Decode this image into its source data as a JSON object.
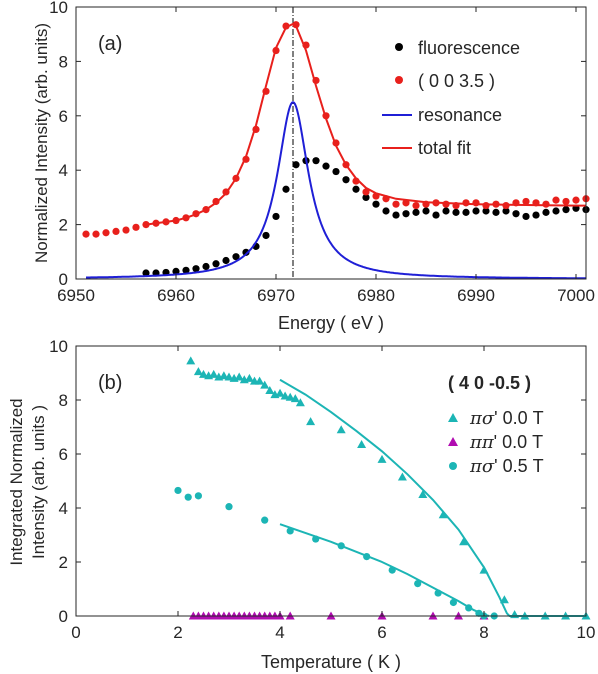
{
  "chart_data": [
    {
      "type": "scatter",
      "panel_label": "(a)",
      "xlabel": "Energy ( eV )",
      "ylabel": "Normalized Intensity (arb. units)",
      "xlim": [
        6950,
        7001
      ],
      "ylim": [
        0,
        10
      ],
      "x_ticks": [
        6950,
        6960,
        6970,
        6980,
        6990,
        7000
      ],
      "y_ticks": [
        0,
        2,
        4,
        6,
        8,
        10
      ],
      "x_tick_labels": [
        "6950",
        "6960",
        "6970",
        "6980",
        "6990",
        "7000"
      ],
      "y_tick_labels": [
        "0",
        "2",
        "4",
        "6",
        "8",
        "10"
      ],
      "vline_x": 6971.7,
      "legend_position": "top-right",
      "series": [
        {
          "name": "fluorescence",
          "kind": "markers",
          "marker": "circle",
          "color": "#000000",
          "x": [
            6957,
            6958,
            6959,
            6960,
            6961,
            6962,
            6963,
            6964,
            6965,
            6966,
            6967,
            6968,
            6969,
            6970,
            6971,
            6972,
            6973,
            6974,
            6975,
            6976,
            6977,
            6978,
            6979,
            6980,
            6981,
            6982,
            6983,
            6984,
            6985,
            6986,
            6987,
            6988,
            6989,
            6990,
            6991,
            6992,
            6993,
            6994,
            6995,
            6996,
            6997,
            6998,
            6999,
            7000,
            7001
          ],
          "y": [
            0.22,
            0.22,
            0.24,
            0.28,
            0.32,
            0.38,
            0.46,
            0.56,
            0.68,
            0.82,
            0.98,
            1.2,
            1.6,
            2.3,
            3.3,
            4.2,
            4.35,
            4.35,
            4.15,
            3.95,
            3.65,
            3.3,
            3.0,
            2.75,
            2.5,
            2.35,
            2.4,
            2.45,
            2.5,
            2.35,
            2.5,
            2.45,
            2.45,
            2.5,
            2.5,
            2.45,
            2.5,
            2.4,
            2.3,
            2.35,
            2.45,
            2.5,
            2.55,
            2.6,
            2.55
          ]
        },
        {
          "name": "( 0 0 3.5 )",
          "kind": "markers",
          "marker": "circle",
          "color": "#e8201c",
          "x": [
            6951,
            6952,
            6953,
            6954,
            6955,
            6956,
            6957,
            6958,
            6959,
            6960,
            6961,
            6962,
            6963,
            6964,
            6965,
            6966,
            6967,
            6968,
            6969,
            6970,
            6971,
            6972,
            6973,
            6974,
            6975,
            6976,
            6977,
            6978,
            6979,
            6980,
            6981,
            6982,
            6983,
            6984,
            6985,
            6986,
            6987,
            6988,
            6989,
            6990,
            6991,
            6992,
            6993,
            6994,
            6995,
            6996,
            6997,
            6998,
            6999,
            7000,
            7001
          ],
          "y": [
            1.65,
            1.65,
            1.7,
            1.75,
            1.8,
            1.9,
            2.0,
            2.05,
            2.1,
            2.15,
            2.25,
            2.4,
            2.55,
            2.85,
            3.2,
            3.7,
            4.4,
            5.5,
            6.9,
            8.4,
            9.3,
            9.35,
            8.6,
            7.3,
            6.0,
            5.0,
            4.2,
            3.6,
            3.2,
            3.05,
            2.95,
            2.75,
            2.8,
            2.7,
            2.75,
            2.8,
            2.75,
            2.7,
            2.8,
            2.8,
            2.7,
            2.75,
            2.7,
            2.8,
            2.85,
            2.8,
            2.75,
            2.9,
            2.85,
            2.9,
            2.95
          ]
        },
        {
          "name": "resonance",
          "kind": "line",
          "color": "#1f1fd6",
          "model": "lorentzian",
          "center": 6971.7,
          "amplitude": 6.5,
          "hwhm": 1.9,
          "x_range": [
            6951,
            7001
          ]
        },
        {
          "name": "total fit",
          "kind": "line",
          "color": "#e8201c",
          "x": [
            6957,
            6958,
            6959,
            6960,
            6961,
            6962,
            6963,
            6964,
            6965,
            6966,
            6967,
            6968,
            6969,
            6970,
            6971,
            6971.7,
            6972,
            6973,
            6974,
            6975,
            6976,
            6977,
            6978,
            6979,
            6980,
            6982,
            6985,
            6990,
            6995,
            7000,
            7001
          ],
          "y": [
            2.0,
            2.05,
            2.1,
            2.15,
            2.25,
            2.38,
            2.55,
            2.8,
            3.15,
            3.7,
            4.5,
            5.65,
            7.1,
            8.5,
            9.25,
            9.38,
            9.3,
            8.4,
            7.1,
            5.9,
            4.9,
            4.2,
            3.7,
            3.35,
            3.15,
            2.95,
            2.82,
            2.75,
            2.72,
            2.7,
            2.7
          ]
        }
      ]
    },
    {
      "type": "scatter",
      "panel_label": "(b)",
      "annotation": "( 4 0 -0.5 )",
      "xlabel": "Temperature ( K )",
      "ylabel_lines": [
        "Integrated Normalized",
        "Intensity (arb. units )"
      ],
      "xlim": [
        0,
        10
      ],
      "ylim": [
        0,
        10
      ],
      "x_ticks": [
        0,
        2,
        4,
        6,
        8,
        10
      ],
      "y_ticks": [
        0,
        2,
        4,
        6,
        8,
        10
      ],
      "x_tick_labels": [
        "0",
        "2",
        "4",
        "6",
        "8",
        "10"
      ],
      "y_tick_labels": [
        "0",
        "2",
        "4",
        "6",
        "8",
        "10"
      ],
      "legend_position": "top-right",
      "series": [
        {
          "name": "πσ' 0.0 T",
          "name_italic": "πσ",
          "name_rest": "' 0.0 T",
          "kind": "markers",
          "marker": "triangle",
          "color": "#1cb5b5",
          "x": [
            2.25,
            2.4,
            2.5,
            2.6,
            2.7,
            2.8,
            2.9,
            3.0,
            3.1,
            3.2,
            3.3,
            3.4,
            3.5,
            3.6,
            3.7,
            3.8,
            3.9,
            4.0,
            4.1,
            4.2,
            4.3,
            4.4,
            4.6,
            5.2,
            5.6,
            6.0,
            6.4,
            6.8,
            7.2,
            7.6,
            8.0,
            8.4,
            8.6,
            8.8,
            9.2,
            9.6,
            10.0
          ],
          "y": [
            9.45,
            9.05,
            8.95,
            8.9,
            8.95,
            8.85,
            8.9,
            8.85,
            8.8,
            8.85,
            8.75,
            8.8,
            8.7,
            8.7,
            8.55,
            8.35,
            8.2,
            8.25,
            8.15,
            8.1,
            8.05,
            7.9,
            7.2,
            6.9,
            6.35,
            5.8,
            5.15,
            4.5,
            3.75,
            2.75,
            1.7,
            0.6,
            0.05,
            0.0,
            0.0,
            0.0,
            0.0
          ]
        },
        {
          "name": "ππ' 0.0 T",
          "name_italic": "ππ",
          "name_rest": "' 0.0 T",
          "kind": "markers",
          "marker": "triangle",
          "color": "#b10cb1",
          "x": [
            2.3,
            2.4,
            2.5,
            2.6,
            2.7,
            2.8,
            2.9,
            3.0,
            3.1,
            3.2,
            3.3,
            3.4,
            3.5,
            3.6,
            3.7,
            3.8,
            3.9,
            4.0,
            4.2,
            5.0,
            6.0,
            7.0,
            7.5,
            8.0
          ],
          "y": [
            0.0,
            0.0,
            0.0,
            0.0,
            0.0,
            0.0,
            0.0,
            0.0,
            0.0,
            0.0,
            0.0,
            0.0,
            0.0,
            0.0,
            0.0,
            0.0,
            0.0,
            0.0,
            0.0,
            0.0,
            0.0,
            0.0,
            0.0,
            0.0
          ]
        },
        {
          "name": "πσ' 0.5 T",
          "name_italic": "πσ",
          "name_rest": "' 0.5 T",
          "kind": "markers",
          "marker": "circle",
          "color": "#1cb5b5",
          "x": [
            2.0,
            2.2,
            2.4,
            3.0,
            3.7,
            4.2,
            4.7,
            5.2,
            5.7,
            6.2,
            6.7,
            7.1,
            7.4,
            7.7,
            7.9,
            8.0,
            8.2
          ],
          "y": [
            4.65,
            4.4,
            4.45,
            4.05,
            3.55,
            3.15,
            2.85,
            2.6,
            2.2,
            1.7,
            1.2,
            0.85,
            0.5,
            0.3,
            0.1,
            0.0,
            0.0
          ]
        },
        {
          "name": "",
          "kind": "line",
          "color": "#1cb5b5",
          "x": [
            4.0,
            4.5,
            5.0,
            5.5,
            6.0,
            6.5,
            7.0,
            7.5,
            8.0,
            8.3,
            8.45,
            8.5,
            9.0,
            10.0
          ],
          "y": [
            8.75,
            8.2,
            7.55,
            6.85,
            6.1,
            5.25,
            4.3,
            3.2,
            1.8,
            0.7,
            0.1,
            0.0,
            0.0,
            0.0
          ]
        },
        {
          "name": "",
          "kind": "line",
          "color": "#1cb5b5",
          "x": [
            4.0,
            5.0,
            6.0,
            6.5,
            7.0,
            7.5,
            7.8,
            8.0,
            8.1
          ],
          "y": [
            3.4,
            2.75,
            2.0,
            1.55,
            1.05,
            0.55,
            0.22,
            0.05,
            0.0
          ]
        }
      ]
    }
  ]
}
